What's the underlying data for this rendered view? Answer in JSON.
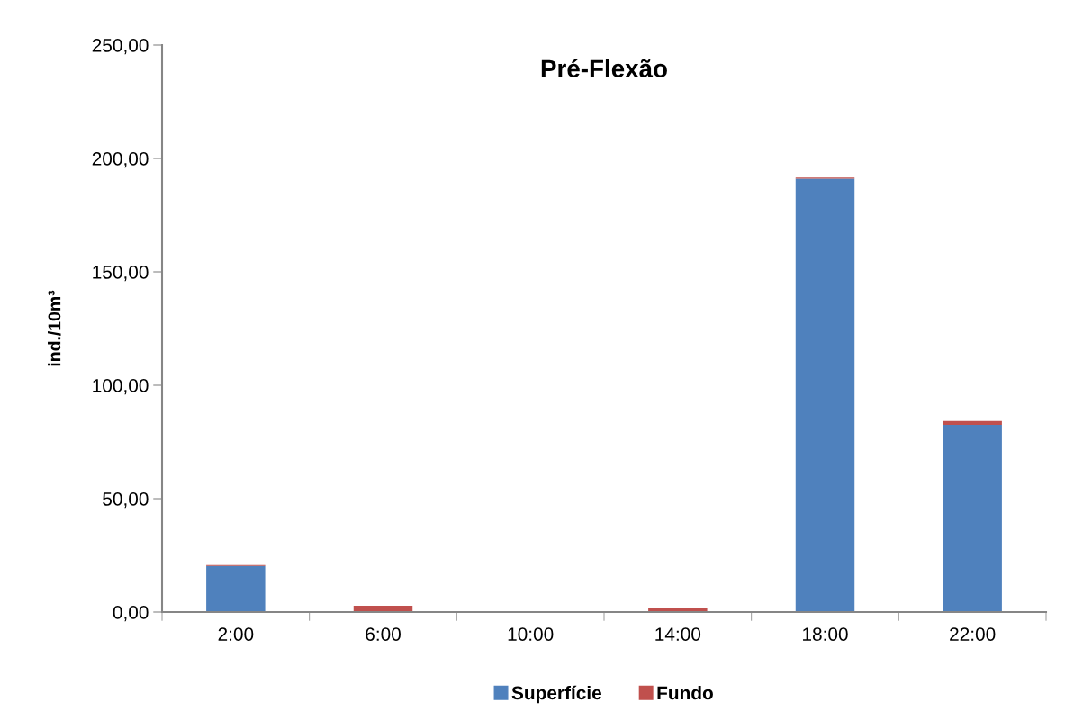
{
  "chart_data": {
    "type": "bar",
    "title": "Pré-Flexão",
    "ylabel": "ind./10m³",
    "categories": [
      "2:00",
      "6:00",
      "10:00",
      "14:00",
      "18:00",
      "22:00"
    ],
    "stacked": true,
    "series": [
      {
        "name": "Superfície",
        "color": "#4f81bd",
        "values": [
          20.3,
          0,
          0,
          0,
          191.1,
          82.5
        ]
      },
      {
        "name": "Fundo",
        "color": "#c0504d",
        "values": [
          0.4,
          2.8,
          0.4,
          2,
          0.5,
          1.7
        ]
      }
    ],
    "ylim": [
      0,
      250
    ],
    "yticks": [
      {
        "value": 0,
        "label": "0,00"
      },
      {
        "value": 50,
        "label": "50,00"
      },
      {
        "value": 100,
        "label": "100,00"
      },
      {
        "value": 150,
        "label": "150,00"
      },
      {
        "value": 200,
        "label": "200,00"
      },
      {
        "value": 250,
        "label": "250,00"
      }
    ],
    "grid": false,
    "legend": "bottom"
  }
}
